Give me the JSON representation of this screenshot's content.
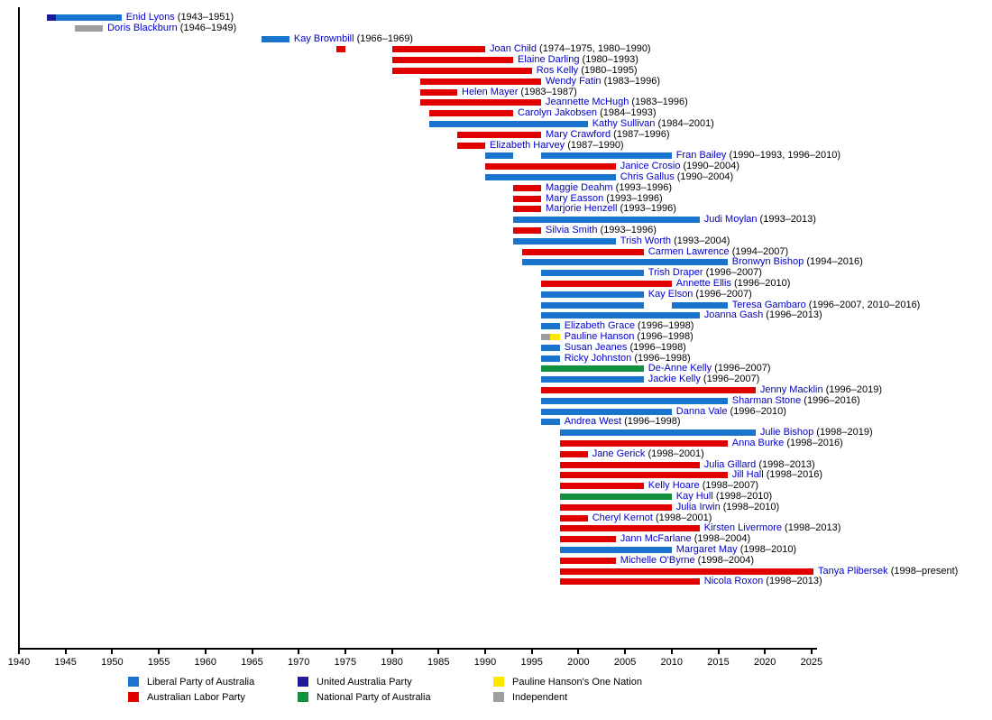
{
  "chart_data": {
    "type": "gantt",
    "title": "",
    "x_axis": {
      "min": 1940,
      "max": 2025,
      "tick_step": 5,
      "ticks": [
        1940,
        1945,
        1950,
        1955,
        1960,
        1965,
        1970,
        1975,
        1980,
        1985,
        1990,
        1995,
        2000,
        2005,
        2010,
        2015,
        2020,
        2025
      ]
    },
    "grid": false,
    "legend_position": "bottom",
    "name_color": "#0000CC",
    "parties": {
      "liberal": {
        "label": "Liberal Party of Australia",
        "color": "#1874CD"
      },
      "labor": {
        "label": "Australian Labor Party",
        "color": "#E00000"
      },
      "uap": {
        "label": "United Australia Party",
        "color": "#1E1C99"
      },
      "national": {
        "label": "National Party of Australia",
        "color": "#11913F"
      },
      "onenation": {
        "label": "Pauline Hanson's One Nation",
        "color": "#FFE600"
      },
      "independent": {
        "label": "Independent",
        "color": "#9E9E9E"
      }
    },
    "legend_order": [
      "liberal",
      "labor",
      "uap",
      "national",
      "onenation",
      "independent"
    ],
    "rows": [
      {
        "name": "Enid Lyons",
        "years": "(1943–1951)",
        "segments": [
          {
            "start": 1943,
            "end": 1944,
            "party": "uap"
          },
          {
            "start": 1944,
            "end": 1951,
            "party": "liberal"
          }
        ]
      },
      {
        "name": "Doris Blackburn",
        "years": "(1946–1949)",
        "segments": [
          {
            "start": 1946,
            "end": 1949,
            "party": "independent"
          }
        ]
      },
      {
        "name": "Kay Brownbill",
        "years": "(1966–1969)",
        "segments": [
          {
            "start": 1966,
            "end": 1969,
            "party": "liberal"
          }
        ]
      },
      {
        "name": "Joan Child",
        "years": "(1974–1975, 1980–1990)",
        "segments": [
          {
            "start": 1974,
            "end": 1975,
            "party": "labor"
          },
          {
            "start": 1980,
            "end": 1990,
            "party": "labor"
          }
        ]
      },
      {
        "name": "Elaine Darling",
        "years": "(1980–1993)",
        "segments": [
          {
            "start": 1980,
            "end": 1993,
            "party": "labor"
          }
        ]
      },
      {
        "name": "Ros Kelly",
        "years": "(1980–1995)",
        "segments": [
          {
            "start": 1980,
            "end": 1995,
            "party": "labor"
          }
        ]
      },
      {
        "name": "Wendy Fatin",
        "years": "(1983–1996)",
        "segments": [
          {
            "start": 1983,
            "end": 1996,
            "party": "labor"
          }
        ]
      },
      {
        "name": "Helen Mayer",
        "years": "(1983–1987)",
        "segments": [
          {
            "start": 1983,
            "end": 1987,
            "party": "labor"
          }
        ]
      },
      {
        "name": "Jeannette McHugh",
        "years": "(1983–1996)",
        "segments": [
          {
            "start": 1983,
            "end": 1996,
            "party": "labor"
          }
        ]
      },
      {
        "name": "Carolyn Jakobsen",
        "years": "(1984–1993)",
        "segments": [
          {
            "start": 1984,
            "end": 1993,
            "party": "labor"
          }
        ]
      },
      {
        "name": "Kathy Sullivan",
        "years": "(1984–2001)",
        "segments": [
          {
            "start": 1984,
            "end": 2001,
            "party": "liberal"
          }
        ]
      },
      {
        "name": "Mary Crawford",
        "years": "(1987–1996)",
        "segments": [
          {
            "start": 1987,
            "end": 1996,
            "party": "labor"
          }
        ]
      },
      {
        "name": "Elizabeth Harvey",
        "years": "(1987–1990)",
        "segments": [
          {
            "start": 1987,
            "end": 1990,
            "party": "labor"
          }
        ]
      },
      {
        "name": "Fran Bailey",
        "years": "(1990–1993, 1996–2010)",
        "segments": [
          {
            "start": 1990,
            "end": 1993,
            "party": "liberal"
          },
          {
            "start": 1996,
            "end": 2010,
            "party": "liberal"
          }
        ]
      },
      {
        "name": "Janice Crosio",
        "years": "(1990–2004)",
        "segments": [
          {
            "start": 1990,
            "end": 2004,
            "party": "labor"
          }
        ]
      },
      {
        "name": "Chris Gallus",
        "years": "(1990–2004)",
        "segments": [
          {
            "start": 1990,
            "end": 2004,
            "party": "liberal"
          }
        ]
      },
      {
        "name": "Maggie Deahm",
        "years": "(1993–1996)",
        "segments": [
          {
            "start": 1993,
            "end": 1996,
            "party": "labor"
          }
        ]
      },
      {
        "name": "Mary Easson",
        "years": "(1993–1996)",
        "segments": [
          {
            "start": 1993,
            "end": 1996,
            "party": "labor"
          }
        ]
      },
      {
        "name": "Marjorie Henzell",
        "years": "(1993–1996)",
        "segments": [
          {
            "start": 1993,
            "end": 1996,
            "party": "labor"
          }
        ]
      },
      {
        "name": "Judi Moylan",
        "years": "(1993–2013)",
        "segments": [
          {
            "start": 1993,
            "end": 2013,
            "party": "liberal"
          }
        ]
      },
      {
        "name": "Silvia Smith",
        "years": "(1993–1996)",
        "segments": [
          {
            "start": 1993,
            "end": 1996,
            "party": "labor"
          }
        ]
      },
      {
        "name": "Trish Worth",
        "years": "(1993–2004)",
        "segments": [
          {
            "start": 1993,
            "end": 2004,
            "party": "liberal"
          }
        ]
      },
      {
        "name": "Carmen Lawrence",
        "years": "(1994–2007)",
        "segments": [
          {
            "start": 1994,
            "end": 2007,
            "party": "labor"
          }
        ]
      },
      {
        "name": "Bronwyn Bishop",
        "years": "(1994–2016)",
        "segments": [
          {
            "start": 1994,
            "end": 2016,
            "party": "liberal"
          }
        ]
      },
      {
        "name": "Trish Draper",
        "years": "(1996–2007)",
        "segments": [
          {
            "start": 1996,
            "end": 2007,
            "party": "liberal"
          }
        ]
      },
      {
        "name": "Annette Ellis",
        "years": "(1996–2010)",
        "segments": [
          {
            "start": 1996,
            "end": 2010,
            "party": "labor"
          }
        ]
      },
      {
        "name": "Kay Elson",
        "years": "(1996–2007)",
        "segments": [
          {
            "start": 1996,
            "end": 2007,
            "party": "liberal"
          }
        ]
      },
      {
        "name": "Teresa Gambaro",
        "years": "(1996–2007, 2010–2016)",
        "segments": [
          {
            "start": 1996,
            "end": 2007,
            "party": "liberal"
          },
          {
            "start": 2010,
            "end": 2016,
            "party": "liberal"
          }
        ]
      },
      {
        "name": "Joanna Gash",
        "years": "(1996–2013)",
        "segments": [
          {
            "start": 1996,
            "end": 2013,
            "party": "liberal"
          }
        ]
      },
      {
        "name": "Elizabeth Grace",
        "years": "(1996–1998)",
        "segments": [
          {
            "start": 1996,
            "end": 1998,
            "party": "liberal"
          }
        ]
      },
      {
        "name": "Pauline Hanson",
        "years": "(1996–1998)",
        "segments": [
          {
            "start": 1996,
            "end": 1997,
            "party": "independent"
          },
          {
            "start": 1997,
            "end": 1998,
            "party": "onenation"
          }
        ]
      },
      {
        "name": "Susan Jeanes",
        "years": "(1996–1998)",
        "segments": [
          {
            "start": 1996,
            "end": 1998,
            "party": "liberal"
          }
        ]
      },
      {
        "name": "Ricky Johnston",
        "years": "(1996–1998)",
        "segments": [
          {
            "start": 1996,
            "end": 1998,
            "party": "liberal"
          }
        ]
      },
      {
        "name": "De-Anne Kelly",
        "years": "(1996–2007)",
        "segments": [
          {
            "start": 1996,
            "end": 2007,
            "party": "national"
          }
        ]
      },
      {
        "name": "Jackie Kelly",
        "years": "(1996–2007)",
        "segments": [
          {
            "start": 1996,
            "end": 2007,
            "party": "liberal"
          }
        ]
      },
      {
        "name": "Jenny Macklin",
        "years": "(1996–2019)",
        "segments": [
          {
            "start": 1996,
            "end": 2019,
            "party": "labor"
          }
        ]
      },
      {
        "name": "Sharman Stone",
        "years": "(1996–2016)",
        "segments": [
          {
            "start": 1996,
            "end": 2016,
            "party": "liberal"
          }
        ]
      },
      {
        "name": "Danna Vale",
        "years": "(1996–2010)",
        "segments": [
          {
            "start": 1996,
            "end": 2010,
            "party": "liberal"
          }
        ]
      },
      {
        "name": "Andrea West",
        "years": "(1996–1998)",
        "segments": [
          {
            "start": 1996,
            "end": 1998,
            "party": "liberal"
          }
        ]
      },
      {
        "name": "Julie Bishop",
        "years": "(1998–2019)",
        "segments": [
          {
            "start": 1998,
            "end": 2019,
            "party": "liberal"
          }
        ]
      },
      {
        "name": "Anna Burke",
        "years": "(1998–2016)",
        "segments": [
          {
            "start": 1998,
            "end": 2016,
            "party": "labor"
          }
        ]
      },
      {
        "name": "Jane Gerick",
        "years": "(1998–2001)",
        "segments": [
          {
            "start": 1998,
            "end": 2001,
            "party": "labor"
          }
        ]
      },
      {
        "name": "Julia Gillard",
        "years": "(1998–2013)",
        "segments": [
          {
            "start": 1998,
            "end": 2013,
            "party": "labor"
          }
        ]
      },
      {
        "name": "Jill Hall",
        "years": "(1998–2016)",
        "segments": [
          {
            "start": 1998,
            "end": 2016,
            "party": "labor"
          }
        ]
      },
      {
        "name": "Kelly Hoare",
        "years": "(1998–2007)",
        "segments": [
          {
            "start": 1998,
            "end": 2007,
            "party": "labor"
          }
        ]
      },
      {
        "name": "Kay Hull",
        "years": "(1998–2010)",
        "segments": [
          {
            "start": 1998,
            "end": 2010,
            "party": "national"
          }
        ]
      },
      {
        "name": "Julia Irwin",
        "years": "(1998–2010)",
        "segments": [
          {
            "start": 1998,
            "end": 2010,
            "party": "labor"
          }
        ]
      },
      {
        "name": "Cheryl Kernot",
        "years": "(1998–2001)",
        "segments": [
          {
            "start": 1998,
            "end": 2001,
            "party": "labor"
          }
        ]
      },
      {
        "name": "Kirsten Livermore",
        "years": "(1998–2013)",
        "segments": [
          {
            "start": 1998,
            "end": 2013,
            "party": "labor"
          }
        ]
      },
      {
        "name": "Jann McFarlane",
        "years": "(1998–2004)",
        "segments": [
          {
            "start": 1998,
            "end": 2004,
            "party": "labor"
          }
        ]
      },
      {
        "name": "Margaret May",
        "years": "(1998–2010)",
        "segments": [
          {
            "start": 1998,
            "end": 2010,
            "party": "liberal"
          }
        ]
      },
      {
        "name": "Michelle O'Byrne",
        "years": "(1998–2004)",
        "segments": [
          {
            "start": 1998,
            "end": 2004,
            "party": "labor"
          }
        ]
      },
      {
        "name": "Tanya Plibersek",
        "years": "(1998–present)",
        "segments": [
          {
            "start": 1998,
            "end": 2025.2,
            "party": "labor"
          }
        ]
      },
      {
        "name": "Nicola Roxon",
        "years": "(1998–2013)",
        "segments": [
          {
            "start": 1998,
            "end": 2013,
            "party": "labor"
          }
        ]
      }
    ]
  }
}
